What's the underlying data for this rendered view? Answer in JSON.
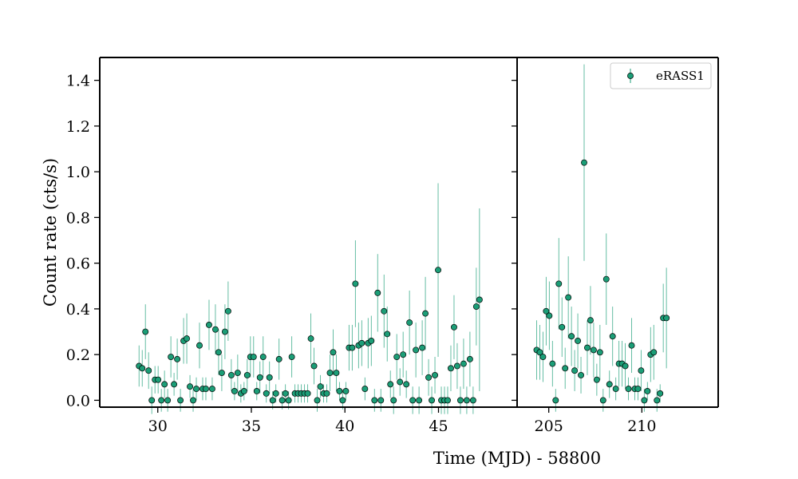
{
  "chart_data": {
    "type": "scatter",
    "ylabel": "Count rate (cts/s)",
    "xlabel": "Time (MJD) - 58800",
    "colors": {
      "marker": "#1b9e77",
      "errorbar": "#1b9e77",
      "edge": "#000000"
    },
    "legend": {
      "placement": "top-right",
      "entries": [
        "eRASS1"
      ]
    },
    "ylim": [
      -0.03,
      1.5
    ],
    "yticks": [
      0.0,
      0.2,
      0.4,
      0.6,
      0.8,
      1.0,
      1.2,
      1.4
    ],
    "ytick_labels": [
      "0.0",
      "0.2",
      "0.4",
      "0.6",
      "0.8",
      "1.0",
      "1.2",
      "1.4"
    ],
    "panels": [
      {
        "xlim": [
          26.9,
          49.2
        ],
        "xticks": [
          30,
          35,
          40,
          45
        ],
        "xtick_labels": [
          "30",
          "35",
          "40",
          "45"
        ],
        "series": [
          {
            "name": "eRASS1",
            "x": [
              29.0,
              29.17,
              29.34,
              29.51,
              29.68,
              29.85,
              30.02,
              30.19,
              30.36,
              30.53,
              30.7,
              30.87,
              31.04,
              31.21,
              31.38,
              31.55,
              31.72,
              31.89,
              32.06,
              32.23,
              32.4,
              32.57,
              32.74,
              32.91,
              33.08,
              33.25,
              33.42,
              33.59,
              33.76,
              33.93,
              34.1,
              34.27,
              34.44,
              34.61,
              34.78,
              34.95,
              35.12,
              35.29,
              35.46,
              35.63,
              35.8,
              35.97,
              36.14,
              36.31,
              36.48,
              36.65,
              36.82,
              36.99,
              37.16,
              37.33,
              37.5,
              37.67,
              37.84,
              38.01,
              38.18,
              38.35,
              38.52,
              38.69,
              38.86,
              39.03,
              39.2,
              39.37,
              39.54,
              39.71,
              39.88,
              40.05,
              40.22,
              40.39,
              40.56,
              40.73,
              40.9,
              41.07,
              41.24,
              41.41,
              41.58,
              41.75,
              41.92,
              42.09,
              42.26,
              42.43,
              42.6,
              42.77,
              42.94,
              43.11,
              43.28,
              43.45,
              43.62,
              43.79,
              43.96,
              44.13,
              44.3,
              44.47,
              44.64,
              44.81,
              44.98,
              45.15,
              45.32,
              45.49,
              45.66,
              45.83,
              46.0,
              46.17,
              46.34,
              46.51,
              46.68,
              46.85,
              47.02,
              47.19
            ],
            "y": [
              0.15,
              0.14,
              0.3,
              0.13,
              0.0,
              0.09,
              0.09,
              0.0,
              0.07,
              0.0,
              0.19,
              0.07,
              0.18,
              0.0,
              0.26,
              0.27,
              0.06,
              0.0,
              0.05,
              0.24,
              0.05,
              0.05,
              0.33,
              0.05,
              0.31,
              0.21,
              0.12,
              0.3,
              0.39,
              0.11,
              0.04,
              0.12,
              0.03,
              0.04,
              0.11,
              0.19,
              0.19,
              0.04,
              0.1,
              0.19,
              0.03,
              0.1,
              0.0,
              0.03,
              0.18,
              0.0,
              0.03,
              0.0,
              0.19,
              0.03,
              0.03,
              0.03,
              0.03,
              0.03,
              0.27,
              0.15,
              0.0,
              0.06,
              0.03,
              0.03,
              0.12,
              0.21,
              0.12,
              0.04,
              0.0,
              0.04,
              0.23,
              0.23,
              0.51,
              0.24,
              0.25,
              0.05,
              0.25,
              0.26,
              0.0,
              0.47,
              0.0,
              0.39,
              0.29,
              0.07,
              0.0,
              0.19,
              0.08,
              0.2,
              0.07,
              0.34,
              0.0,
              0.22,
              0.0,
              0.23,
              0.38,
              0.1,
              0.0,
              0.11,
              0.57,
              0.0,
              0.0,
              0.0,
              0.14,
              0.32,
              0.15,
              0.0,
              0.16,
              0.0,
              0.18,
              0.0,
              0.41,
              0.44
            ],
            "yerr": [
              0.09,
              0.08,
              0.12,
              0.08,
              0.06,
              0.06,
              0.06,
              0.05,
              0.06,
              0.05,
              0.09,
              0.05,
              0.09,
              0.05,
              0.1,
              0.11,
              0.05,
              0.05,
              0.05,
              0.1,
              0.05,
              0.05,
              0.11,
              0.05,
              0.11,
              0.1,
              0.08,
              0.12,
              0.13,
              0.07,
              0.04,
              0.08,
              0.04,
              0.04,
              0.07,
              0.09,
              0.09,
              0.04,
              0.07,
              0.09,
              0.04,
              0.07,
              0.04,
              0.04,
              0.09,
              0.04,
              0.04,
              0.04,
              0.09,
              0.04,
              0.04,
              0.04,
              0.04,
              0.04,
              0.11,
              0.08,
              0.05,
              0.05,
              0.04,
              0.04,
              0.08,
              0.1,
              0.08,
              0.04,
              0.04,
              0.04,
              0.1,
              0.1,
              0.19,
              0.1,
              0.1,
              0.05,
              0.11,
              0.11,
              0.05,
              0.17,
              0.05,
              0.16,
              0.12,
              0.06,
              0.06,
              0.1,
              0.06,
              0.1,
              0.06,
              0.14,
              0.06,
              0.12,
              0.06,
              0.12,
              0.16,
              0.08,
              0.06,
              0.08,
              0.38,
              0.06,
              0.06,
              0.06,
              0.1,
              0.14,
              0.1,
              0.06,
              0.11,
              0.06,
              0.12,
              0.06,
              0.17,
              0.4
            ]
          }
        ]
      },
      {
        "xlim": [
          203.3,
          214.1
        ],
        "xticks": [
          205,
          210
        ],
        "xtick_labels": [
          "205",
          "210"
        ],
        "series": [
          {
            "name": "eRASS1",
            "x": [
              204.35,
              204.52,
              204.69,
              204.86,
              205.03,
              205.2,
              205.37,
              205.54,
              205.71,
              205.88,
              206.05,
              206.22,
              206.39,
              206.56,
              206.73,
              206.9,
              207.07,
              207.24,
              207.41,
              207.58,
              207.75,
              207.92,
              208.09,
              208.26,
              208.43,
              208.6,
              208.77,
              208.94,
              209.11,
              209.28,
              209.45,
              209.62,
              209.79,
              209.96,
              210.13,
              210.3,
              210.47,
              210.64,
              210.81,
              210.98,
              211.15,
              211.32
            ],
            "y": [
              0.22,
              0.21,
              0.19,
              0.39,
              0.37,
              0.16,
              0.0,
              0.51,
              0.32,
              0.14,
              0.45,
              0.28,
              0.13,
              0.26,
              0.11,
              1.04,
              0.23,
              0.35,
              0.22,
              0.09,
              0.21,
              0.0,
              0.53,
              0.07,
              0.28,
              0.05,
              0.16,
              0.16,
              0.15,
              0.05,
              0.24,
              0.05,
              0.05,
              0.13,
              0.0,
              0.04,
              0.2,
              0.21,
              0.0,
              0.03,
              0.36,
              0.36
            ],
            "yerr": [
              0.13,
              0.12,
              0.11,
              0.15,
              0.15,
              0.1,
              0.05,
              0.2,
              0.13,
              0.09,
              0.18,
              0.13,
              0.09,
              0.12,
              0.08,
              0.43,
              0.12,
              0.15,
              0.12,
              0.07,
              0.12,
              0.05,
              0.2,
              0.06,
              0.13,
              0.05,
              0.1,
              0.1,
              0.1,
              0.05,
              0.12,
              0.05,
              0.05,
              0.09,
              0.05,
              0.04,
              0.12,
              0.12,
              0.05,
              0.04,
              0.15,
              0.22
            ]
          }
        ]
      }
    ]
  }
}
